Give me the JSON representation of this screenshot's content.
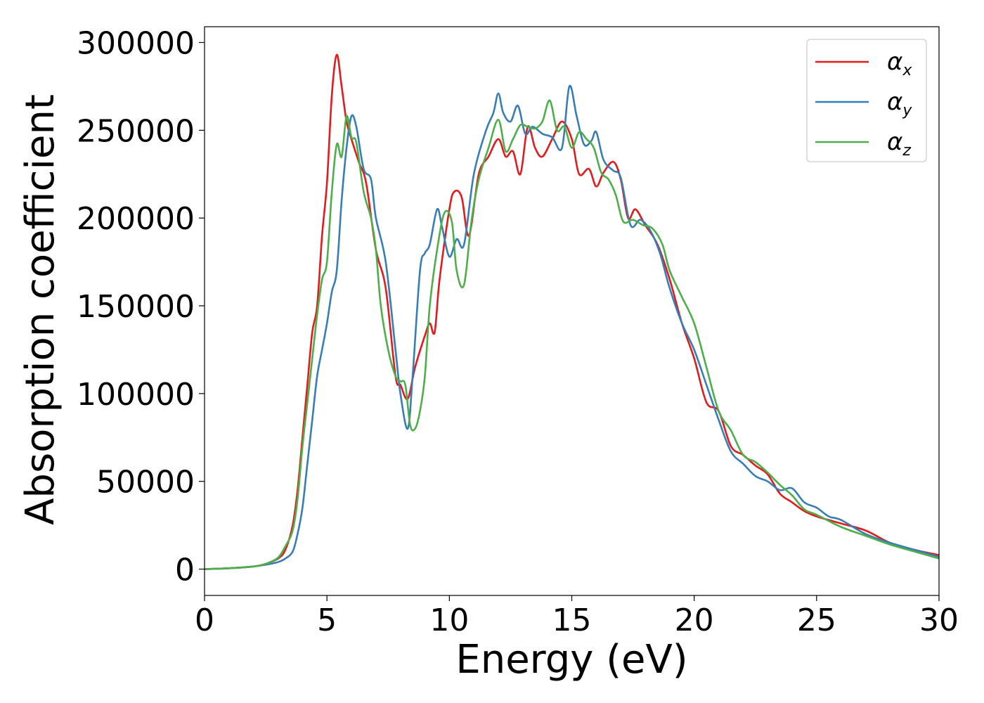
{
  "chart_data": {
    "type": "line",
    "title": "",
    "xlabel": "Energy (eV)",
    "ylabel": "Absorption coefficient",
    "xlim": [
      0,
      30
    ],
    "ylim": [
      -15000,
      309000
    ],
    "xticks": [
      0,
      5,
      10,
      15,
      20,
      25,
      30
    ],
    "yticks": [
      0,
      50000,
      100000,
      150000,
      200000,
      250000,
      300000
    ],
    "grid": false,
    "legend_position": "top-right",
    "series": [
      {
        "name": "α",
        "subscript": "x",
        "color": "#e41a1c",
        "x": [
          0,
          1,
          2,
          2.5,
          3,
          3.3,
          3.6,
          3.8,
          4.0,
          4.2,
          4.4,
          4.6,
          4.8,
          5.0,
          5.2,
          5.4,
          5.6,
          5.8,
          6.0,
          6.3,
          6.6,
          7.0,
          7.4,
          7.8,
          8.0,
          8.3,
          8.6,
          9.0,
          9.2,
          9.4,
          9.6,
          10.0,
          10.2,
          10.5,
          10.8,
          11.2,
          11.6,
          12.0,
          12.3,
          12.6,
          12.9,
          13.2,
          13.5,
          13.8,
          14.2,
          14.6,
          15.0,
          15.3,
          15.7,
          16.0,
          16.3,
          16.7,
          17.0,
          17.3,
          17.6,
          18.0,
          18.5,
          19.0,
          19.5,
          20.0,
          20.5,
          21.0,
          21.5,
          22.0,
          22.5,
          23.0,
          23.5,
          24.0,
          24.5,
          25.0,
          26.0,
          27.0,
          28.0,
          29.0,
          30.0
        ],
        "y": [
          0,
          500,
          1500,
          3000,
          6000,
          11000,
          25000,
          45000,
          75000,
          105000,
          135000,
          150000,
          190000,
          220000,
          270000,
          293000,
          275000,
          255000,
          245000,
          232000,
          220000,
          182000,
          160000,
          110000,
          105000,
          97000,
          115000,
          133000,
          140000,
          135000,
          165000,
          205000,
          215000,
          212000,
          190000,
          225000,
          235000,
          245000,
          235000,
          238000,
          225000,
          252000,
          240000,
          235000,
          245000,
          255000,
          245000,
          225000,
          228000,
          218000,
          226000,
          232000,
          222000,
          200000,
          205000,
          196000,
          185000,
          165000,
          140000,
          120000,
          95000,
          90000,
          70000,
          65000,
          59000,
          54000,
          43000,
          38000,
          33000,
          30000,
          26000,
          22000,
          15000,
          11000,
          8000
        ]
      },
      {
        "name": "α",
        "subscript": "y",
        "color": "#377eb8",
        "x": [
          0,
          1,
          2,
          2.5,
          3,
          3.3,
          3.6,
          3.8,
          4.0,
          4.2,
          4.4,
          4.6,
          4.8,
          5.0,
          5.2,
          5.4,
          5.6,
          5.8,
          6.0,
          6.2,
          6.5,
          6.8,
          7.0,
          7.4,
          7.8,
          8.0,
          8.3,
          8.5,
          8.8,
          9.0,
          9.2,
          9.5,
          9.7,
          10.0,
          10.3,
          10.6,
          11.0,
          11.5,
          11.8,
          12.0,
          12.2,
          12.5,
          12.8,
          13.1,
          13.4,
          13.8,
          14.2,
          14.6,
          14.9,
          15.2,
          15.5,
          15.8,
          16.0,
          16.3,
          16.7,
          17.0,
          17.4,
          17.8,
          18.2,
          18.6,
          19.0,
          19.5,
          20.0,
          20.5,
          21.0,
          21.5,
          22.0,
          22.5,
          23.0,
          23.5,
          24.0,
          24.5,
          25.0,
          25.5,
          26.0,
          27.0,
          28.0,
          29.0,
          30.0
        ],
        "y": [
          0,
          500,
          1500,
          2500,
          4000,
          6000,
          10000,
          20000,
          35000,
          60000,
          85000,
          110000,
          125000,
          140000,
          158000,
          170000,
          210000,
          240000,
          258000,
          252000,
          228000,
          222000,
          200000,
          175000,
          125000,
          100000,
          80000,
          110000,
          170000,
          180000,
          185000,
          205000,
          195000,
          178000,
          188000,
          185000,
          225000,
          250000,
          260000,
          271000,
          260000,
          255000,
          264000,
          248000,
          252000,
          248000,
          246000,
          240000,
          275000,
          258000,
          242000,
          244000,
          249000,
          233000,
          227000,
          223000,
          196000,
          199000,
          193000,
          180000,
          160000,
          140000,
          125000,
          105000,
          85000,
          67000,
          60000,
          53000,
          50000,
          45000,
          46000,
          38000,
          35000,
          30000,
          28000,
          20000,
          15000,
          11000,
          7000
        ]
      },
      {
        "name": "α",
        "subscript": "z",
        "color": "#4daf4a",
        "x": [
          0,
          1,
          2,
          2.5,
          3,
          3.3,
          3.6,
          3.8,
          4.0,
          4.2,
          4.4,
          4.6,
          4.8,
          5.0,
          5.2,
          5.4,
          5.6,
          5.8,
          6.0,
          6.2,
          6.5,
          6.8,
          7.0,
          7.2,
          7.5,
          7.8,
          8.0,
          8.2,
          8.4,
          8.6,
          8.8,
          9.0,
          9.2,
          9.5,
          9.8,
          10.1,
          10.3,
          10.6,
          10.9,
          11.2,
          11.6,
          12.0,
          12.3,
          12.6,
          12.9,
          13.2,
          13.5,
          13.8,
          14.1,
          14.4,
          14.7,
          15.0,
          15.3,
          15.6,
          15.9,
          16.2,
          16.5,
          16.8,
          17.1,
          17.5,
          17.9,
          18.3,
          18.7,
          19.0,
          19.5,
          20.0,
          20.5,
          21.0,
          21.5,
          22.0,
          22.5,
          23.0,
          23.5,
          24.0,
          24.5,
          25.0,
          26.0,
          27.0,
          28.0,
          29.0,
          30.0
        ],
        "y": [
          0,
          500,
          1500,
          3000,
          6500,
          13000,
          22000,
          40000,
          70000,
          95000,
          120000,
          145000,
          165000,
          175000,
          215000,
          242000,
          235000,
          258000,
          246000,
          243000,
          215000,
          200000,
          182000,
          150000,
          125000,
          110000,
          107000,
          105000,
          82000,
          80000,
          90000,
          110000,
          150000,
          182000,
          203000,
          198000,
          170000,
          162000,
          198000,
          222000,
          240000,
          256000,
          238000,
          245000,
          253000,
          252000,
          251000,
          255000,
          267000,
          250000,
          252000,
          240000,
          249000,
          245000,
          240000,
          226000,
          222000,
          213000,
          198000,
          199000,
          196000,
          194000,
          185000,
          170000,
          155000,
          140000,
          115000,
          90000,
          79000,
          65000,
          61000,
          55000,
          48000,
          42000,
          34000,
          31000,
          24000,
          19000,
          14000,
          10000,
          6000
        ]
      }
    ]
  }
}
